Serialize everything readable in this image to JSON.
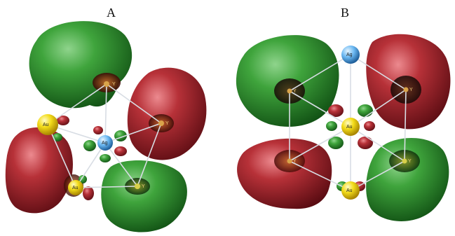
{
  "panels": [
    {
      "label": "A",
      "atoms": [
        {
          "symbol": "Ag",
          "element": "silver"
        },
        {
          "symbol": "Au",
          "element": "gold"
        },
        {
          "symbol": "Au",
          "element": "gold"
        },
        {
          "symbol": "Y",
          "element": "yttrium"
        },
        {
          "symbol": "Y",
          "element": "yttrium"
        },
        {
          "symbol": "Y",
          "element": "yttrium"
        }
      ]
    },
    {
      "label": "B",
      "atoms": [
        {
          "symbol": "Ag",
          "element": "silver"
        },
        {
          "symbol": "Au",
          "element": "gold"
        },
        {
          "symbol": "Au",
          "element": "gold"
        },
        {
          "symbol": "Y",
          "element": "yttrium"
        },
        {
          "symbol": "Y",
          "element": "yttrium"
        },
        {
          "symbol": "Y",
          "element": "yttrium"
        },
        {
          "symbol": "Y",
          "element": "yttrium"
        }
      ]
    }
  ],
  "colors": {
    "lobe_positive": "#2f8a2f",
    "lobe_negative": "#a8242c",
    "gold_atom": "#f0d21c",
    "silver_atom": "#5aaef0",
    "bond": "#d8dde4"
  }
}
